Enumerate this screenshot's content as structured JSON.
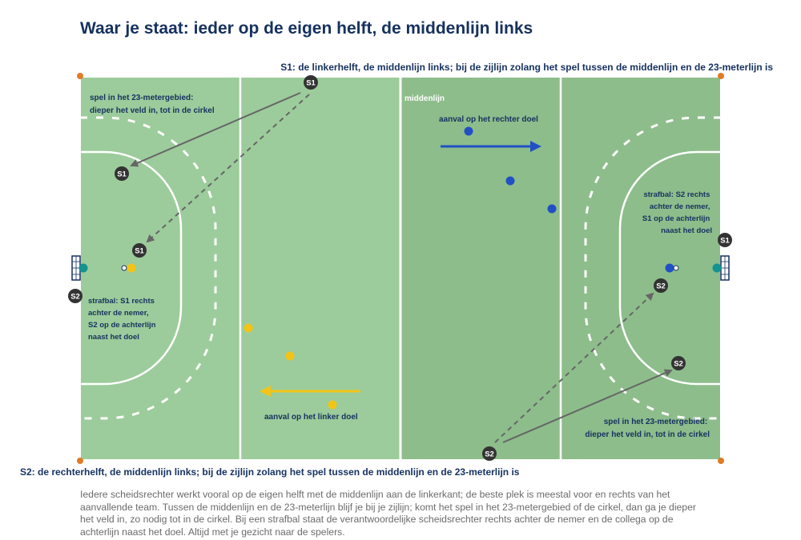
{
  "title": "Waar je staat: ieder op de eigen helft, de middenlijn links",
  "labels": {
    "s1_role": "S1: de linkerhelft, de middenlijn links; bij de zijlijn zolang het spel tussen de middenlijn en de 23-meterlijn is",
    "s2_role": "S2: de rechterhelft, de middenlijn links; bij de zijlijn zolang het spel tussen de middenlijn en de 23-meterlijn is",
    "midline": "middenlijn",
    "attack_right": "aanval op het rechter doel",
    "attack_left": "aanval op het linker doel",
    "left_23": [
      "spel in het 23-metergebied:",
      "dieper het veld in, tot in de cirkel"
    ],
    "right_23": [
      "spel in het 23-metergebied:",
      "dieper het veld in, tot in de cirkel"
    ],
    "left_penalty": [
      "strafbal: S1 rechts",
      "achter de nemer,",
      "S2 op de achterlijn",
      "naast het doel"
    ],
    "right_penalty": [
      "strafbal: S2 rechts",
      "achter de nemer,",
      "S1 op de achterlijn",
      "naast het doel"
    ]
  },
  "umpires": {
    "s1_sideline": "S1",
    "s1_23m": "S1",
    "s1_penalty": "S1",
    "s1_backline": "S1",
    "s2_sideline": "S2",
    "s2_23m": "S2",
    "s2_penalty": "S2",
    "s2_backline": "S2"
  },
  "note": "Iedere scheidsrechter werkt vooral op de eigen helft met de middenlijn aan de linkerkant; de beste plek is meestal voor en rechts van het aanvallende team. Tussen de middenlijn en de 23-meterlijn blijf je bij je zijlijn; komt het spel in het 23-metergebied of de cirkel, dan ga je dieper het veld in, zo nodig tot in de cirkel. Bij een strafbal staat de verantwoordelijke scheidsrechter rechts achter de nemer en de collega op de achterlijn naast het doel. Altijd met je gezicht naar de spelers.",
  "colors": {
    "field_light": "#9ccc9b",
    "field_dark": "#8dbd8b",
    "line": "#ffffff",
    "team_blue": "#2150c4",
    "team_yellow": "#f3c417",
    "goalkeeper": "#13938f",
    "umpire": "#333333",
    "corner_flag": "#e07b27",
    "text_navy": "#16315f"
  }
}
